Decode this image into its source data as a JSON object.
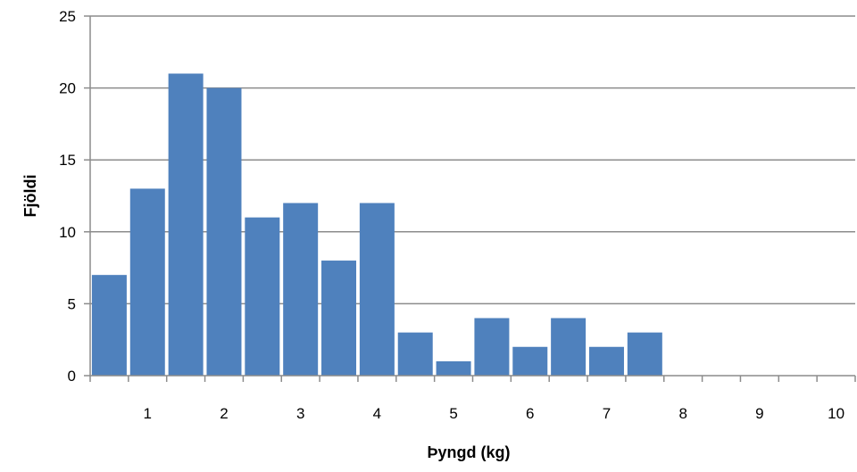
{
  "chart_data": {
    "type": "bar",
    "title": "",
    "xlabel": "Þyngd (kg)",
    "ylabel": "Fjöldi",
    "x_range": [
      0,
      10
    ],
    "bin_width": 0.5,
    "bin_centers": [
      0.25,
      0.75,
      1.25,
      1.75,
      2.25,
      2.75,
      3.25,
      3.75,
      4.25,
      4.75,
      5.25,
      5.75,
      6.25,
      6.75,
      7.25,
      7.75,
      8.25,
      8.75,
      9.25,
      9.75
    ],
    "values": [
      7,
      13,
      21,
      20,
      11,
      12,
      8,
      12,
      3,
      1,
      4,
      2,
      4,
      2,
      3,
      0,
      0,
      0,
      0,
      0
    ],
    "x_tick_labels": [
      "1",
      "2",
      "3",
      "4",
      "5",
      "6",
      "7",
      "8",
      "9",
      "10"
    ],
    "y_tick_labels": [
      "0",
      "5",
      "10",
      "15",
      "20",
      "25"
    ],
    "ylim": [
      0,
      25
    ],
    "grid": "horizontal",
    "legend": "none",
    "colors": {
      "bar": "#4f81bd",
      "grid": "#8c8c8c",
      "text": "#000000"
    }
  }
}
